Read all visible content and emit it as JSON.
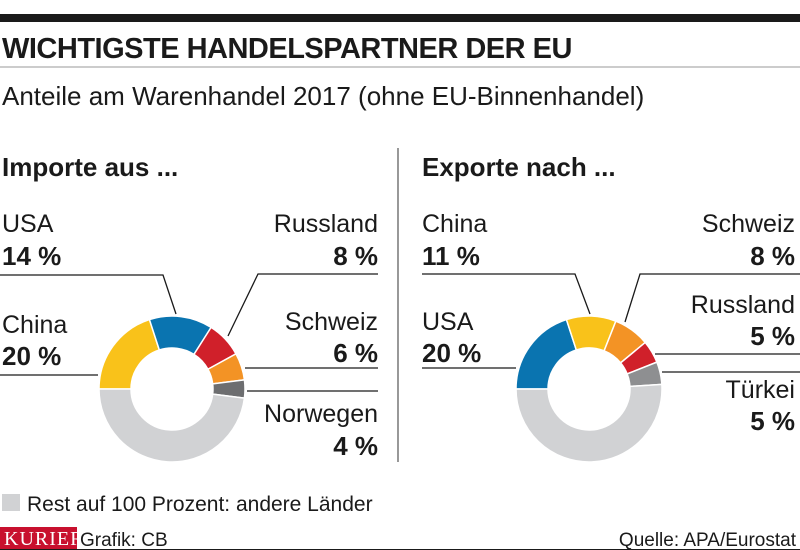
{
  "title": "WICHTIGSTE HANDELSPARTNER DER EU",
  "subtitle": "Anteile am Warenhandel 2017 (ohne EU-Binnenhandel)",
  "legend_rest": "Rest auf 100 Prozent: andere Länder",
  "footer": {
    "brand": "KURIER",
    "credit": "Grafik: CB",
    "source": "Quelle: APA/Eurostat"
  },
  "colors": {
    "yellow": "#f9c21a",
    "blue": "#0a74b0",
    "red": "#d0202a",
    "orange": "#f39325",
    "darkgray": "#6d6e70",
    "gray": "#8e8f91",
    "rest": "#d1d2d4",
    "brand": "#c8102e"
  },
  "chart_data": [
    {
      "type": "pie",
      "title": "Importe aus ...",
      "unit": "%",
      "slices": [
        {
          "name": "China",
          "value": 20,
          "label": "20 %",
          "color": "#f9c21a"
        },
        {
          "name": "USA",
          "value": 14,
          "label": "14 %",
          "color": "#0a74b0"
        },
        {
          "name": "Russland",
          "value": 8,
          "label": "8 %",
          "color": "#d0202a"
        },
        {
          "name": "Schweiz",
          "value": 6,
          "label": "6 %",
          "color": "#f39325"
        },
        {
          "name": "Norwegen",
          "value": 4,
          "label": "4 %",
          "color": "#6d6e70"
        },
        {
          "name": "andere Länder",
          "value": 48,
          "color": "#d1d2d4"
        }
      ]
    },
    {
      "type": "pie",
      "title": "Exporte nach ...",
      "unit": "%",
      "slices": [
        {
          "name": "USA",
          "value": 20,
          "label": "20 %",
          "color": "#0a74b0"
        },
        {
          "name": "China",
          "value": 11,
          "label": "11 %",
          "color": "#f9c21a"
        },
        {
          "name": "Schweiz",
          "value": 8,
          "label": "8 %",
          "color": "#f39325"
        },
        {
          "name": "Russland",
          "value": 5,
          "label": "5 %",
          "color": "#d0202a"
        },
        {
          "name": "Türkei",
          "value": 5,
          "label": "5 %",
          "color": "#8e8f91"
        },
        {
          "name": "andere Länder",
          "value": 51,
          "color": "#d1d2d4"
        }
      ]
    }
  ]
}
